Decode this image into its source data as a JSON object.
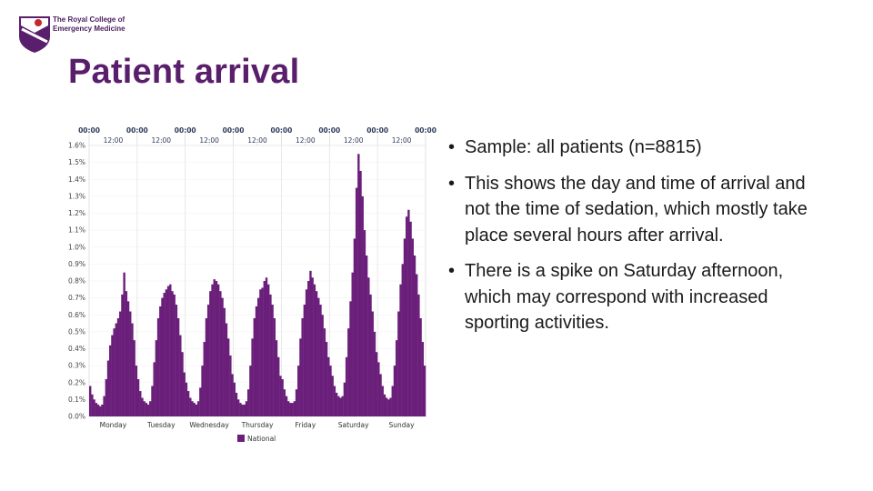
{
  "logo": {
    "line1": "The Royal College of",
    "line2": "Emergency Medicine"
  },
  "slide": {
    "title": "Patient arrival"
  },
  "bullets": [
    "Sample: all patients (n=8815)",
    "This shows the day and time of arrival and not the time of sedation, which mostly take place several hours after arrival.",
    "There is a spike on Saturday afternoon, which may correspond with increased sporting activities."
  ],
  "colors": {
    "brand": "#5a1f6c",
    "bar": "#6a1f7a",
    "text": "#1a1a1a"
  },
  "chart_data": {
    "type": "area",
    "legend": [
      "National"
    ],
    "legend_position": "bottom",
    "x_top_ticks_major": [
      "00:00",
      "00:00",
      "00:00",
      "00:00",
      "00:00",
      "00:00",
      "00:00",
      "00:00"
    ],
    "x_top_ticks_minor": [
      "12:00",
      "12:00",
      "12:00",
      "12:00",
      "12:00",
      "12:00",
      "12:00"
    ],
    "categories": [
      "Monday",
      "Tuesday",
      "Wednesday",
      "Thursday",
      "Friday",
      "Saturday",
      "Sunday"
    ],
    "y_ticks": [
      "0.0%",
      "0.1%",
      "0.2%",
      "0.3%",
      "0.4%",
      "0.5%",
      "0.6%",
      "0.7%",
      "0.8%",
      "0.9%",
      "1.0%",
      "1.1%",
      "1.2%",
      "1.3%",
      "1.4%",
      "1.5%",
      "1.6%"
    ],
    "ylim": [
      0,
      1.6
    ],
    "grid": true,
    "daily_profile": {
      "Monday": [
        0.18,
        0.13,
        0.1,
        0.08,
        0.07,
        0.06,
        0.07,
        0.12,
        0.22,
        0.33,
        0.42,
        0.48,
        0.52,
        0.55,
        0.58,
        0.62,
        0.72,
        0.85,
        0.74,
        0.68,
        0.62,
        0.55,
        0.45,
        0.3
      ],
      "Tuesday": [
        0.22,
        0.15,
        0.11,
        0.09,
        0.08,
        0.07,
        0.09,
        0.18,
        0.32,
        0.45,
        0.58,
        0.65,
        0.7,
        0.73,
        0.75,
        0.77,
        0.78,
        0.74,
        0.72,
        0.66,
        0.58,
        0.48,
        0.38,
        0.26
      ],
      "Wednesday": [
        0.2,
        0.15,
        0.11,
        0.09,
        0.08,
        0.07,
        0.09,
        0.17,
        0.3,
        0.44,
        0.58,
        0.66,
        0.74,
        0.78,
        0.81,
        0.8,
        0.78,
        0.74,
        0.7,
        0.64,
        0.55,
        0.46,
        0.36,
        0.25
      ],
      "Thursday": [
        0.2,
        0.14,
        0.1,
        0.08,
        0.07,
        0.07,
        0.09,
        0.16,
        0.3,
        0.46,
        0.58,
        0.65,
        0.7,
        0.75,
        0.76,
        0.8,
        0.82,
        0.78,
        0.72,
        0.66,
        0.58,
        0.45,
        0.35,
        0.24
      ],
      "Friday": [
        0.22,
        0.16,
        0.12,
        0.09,
        0.08,
        0.08,
        0.09,
        0.16,
        0.3,
        0.46,
        0.58,
        0.66,
        0.75,
        0.8,
        0.86,
        0.82,
        0.78,
        0.74,
        0.7,
        0.66,
        0.6,
        0.52,
        0.44,
        0.35
      ],
      "Saturday": [
        0.3,
        0.24,
        0.18,
        0.14,
        0.12,
        0.11,
        0.12,
        0.2,
        0.35,
        0.52,
        0.68,
        0.85,
        1.05,
        1.35,
        1.55,
        1.45,
        1.3,
        1.1,
        0.95,
        0.82,
        0.72,
        0.62,
        0.5,
        0.38
      ],
      "Sunday": [
        0.32,
        0.25,
        0.18,
        0.13,
        0.11,
        0.1,
        0.11,
        0.18,
        0.3,
        0.45,
        0.62,
        0.78,
        0.9,
        1.05,
        1.18,
        1.22,
        1.15,
        1.05,
        0.95,
        0.84,
        0.72,
        0.58,
        0.44,
        0.3
      ]
    }
  }
}
